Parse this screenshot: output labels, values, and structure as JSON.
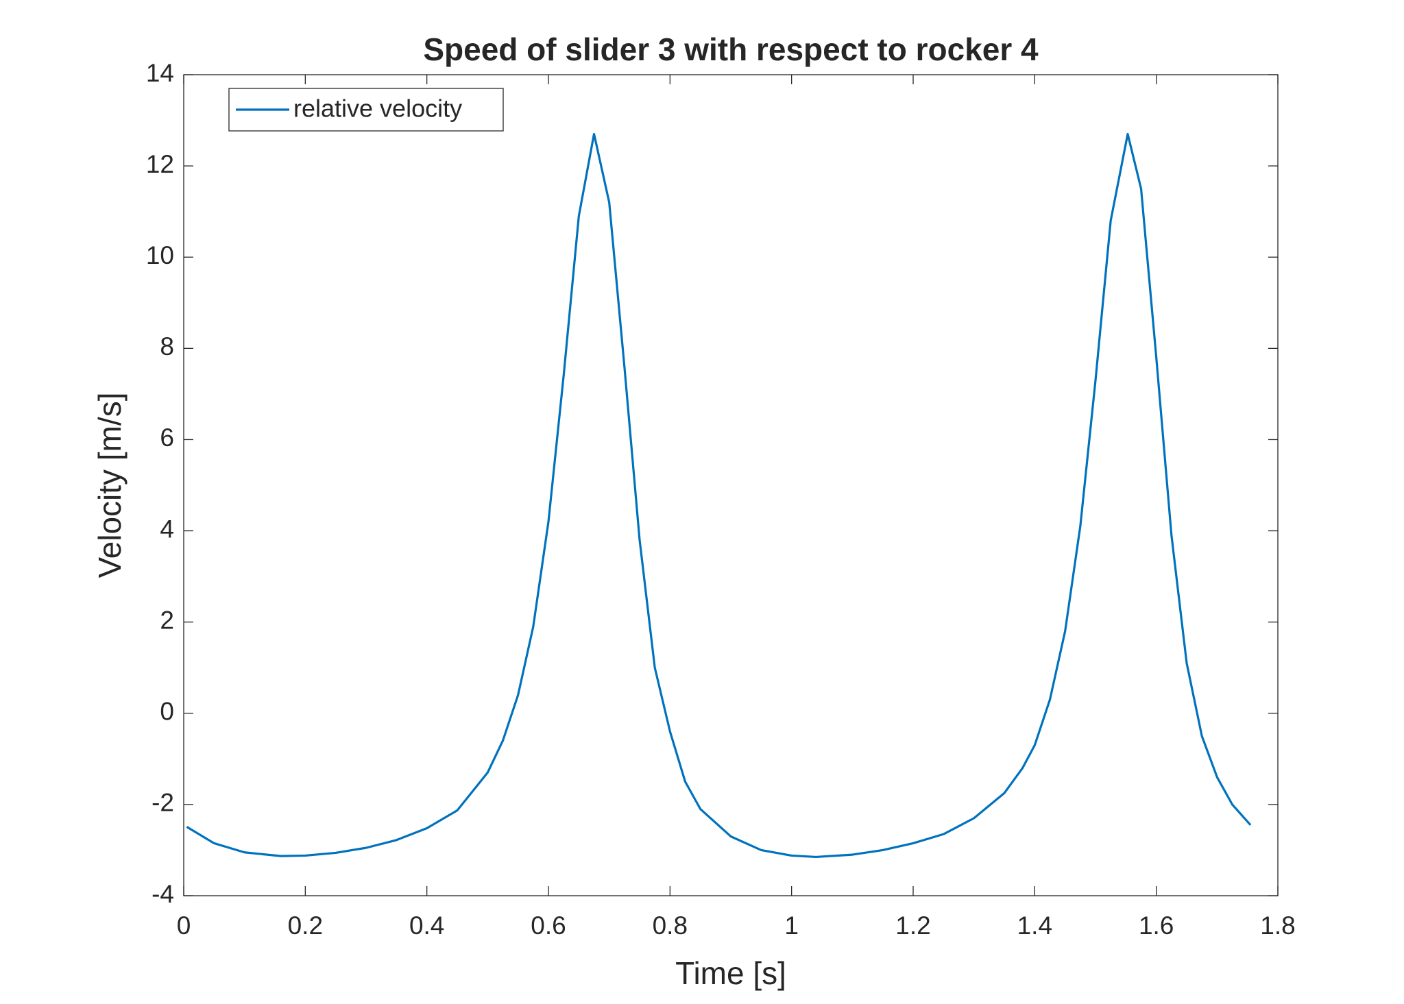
{
  "chart_data": {
    "type": "line",
    "title": "Speed of slider 3 with respect to rocker 4",
    "x_label": "Time [s]",
    "y_label": "Velocity [m/s]",
    "xlim": [
      0,
      1.8
    ],
    "ylim": [
      -4,
      14
    ],
    "xticks": [
      0,
      0.2,
      0.4,
      0.6,
      0.8,
      1,
      1.2,
      1.4,
      1.6,
      1.8
    ],
    "yticks": [
      -4,
      -2,
      0,
      2,
      4,
      6,
      8,
      10,
      12,
      14
    ],
    "grid": false,
    "legend_position": "upper-left",
    "x": [
      0.005,
      0.05,
      0.1,
      0.16,
      0.2,
      0.25,
      0.3,
      0.35,
      0.4,
      0.45,
      0.5,
      0.525,
      0.55,
      0.575,
      0.6,
      0.625,
      0.65,
      0.675,
      0.7,
      0.725,
      0.75,
      0.775,
      0.8,
      0.825,
      0.85,
      0.9,
      0.95,
      1.0,
      1.04,
      1.1,
      1.15,
      1.2,
      1.25,
      1.3,
      1.35,
      1.38,
      1.4,
      1.425,
      1.45,
      1.475,
      1.5,
      1.525,
      1.553,
      1.575,
      1.6,
      1.625,
      1.65,
      1.675,
      1.7,
      1.725,
      1.755
    ],
    "series": [
      {
        "name": "relative velocity",
        "color": "#0072bd",
        "values": [
          -2.49,
          -2.85,
          -3.05,
          -3.13,
          -3.12,
          -3.06,
          -2.95,
          -2.78,
          -2.52,
          -2.13,
          -1.3,
          -0.6,
          0.4,
          1.9,
          4.2,
          7.4,
          10.9,
          12.7,
          11.2,
          7.6,
          3.8,
          1.0,
          -0.4,
          -1.5,
          -2.1,
          -2.7,
          -3.0,
          -3.12,
          -3.15,
          -3.1,
          -3.0,
          -2.85,
          -2.65,
          -2.3,
          -1.75,
          -1.2,
          -0.7,
          0.3,
          1.8,
          4.1,
          7.3,
          10.8,
          12.7,
          11.5,
          7.8,
          3.9,
          1.1,
          -0.5,
          -1.4,
          -2.0,
          -2.45
        ]
      }
    ]
  }
}
